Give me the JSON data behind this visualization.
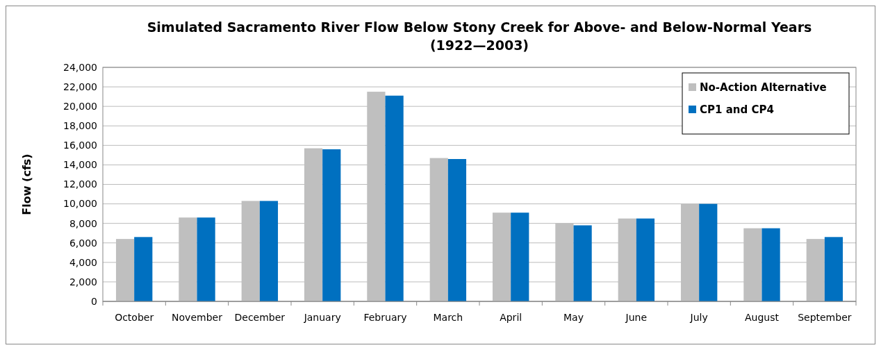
{
  "chart_data": {
    "type": "bar",
    "title": "Simulated Sacramento River Flow Below Stony Creek for Above- and Below-Normal Years",
    "subtitle": "(1922—2003)",
    "ylabel": "Flow (cfs)",
    "categories": [
      "October",
      "November",
      "December",
      "January",
      "February",
      "March",
      "April",
      "May",
      "June",
      "July",
      "August",
      "September"
    ],
    "series": [
      {
        "name": "No-Action Alternative",
        "color": "#bfbfbf",
        "values": [
          6400,
          8600,
          10300,
          15700,
          21500,
          14700,
          9100,
          8000,
          8500,
          10000,
          7500,
          6400
        ]
      },
      {
        "name": "CP1 and CP4",
        "color": "#0070c0",
        "values": [
          6600,
          8600,
          10300,
          15600,
          21100,
          14600,
          9100,
          7800,
          8500,
          10000,
          7500,
          6600
        ]
      }
    ],
    "ylim": [
      0,
      24000
    ],
    "yticks": [
      {
        "value": 0,
        "label": "0"
      },
      {
        "value": 2000,
        "label": "2,000"
      },
      {
        "value": 4000,
        "label": "4,000"
      },
      {
        "value": 6000,
        "label": "6,000"
      },
      {
        "value": 8000,
        "label": "8,000"
      },
      {
        "value": 10000,
        "label": "10,000"
      },
      {
        "value": 12000,
        "label": "12,000"
      },
      {
        "value": 14000,
        "label": "14,000"
      },
      {
        "value": 16000,
        "label": "16,000"
      },
      {
        "value": 18000,
        "label": "18,000"
      },
      {
        "value": 20000,
        "label": "20,000"
      },
      {
        "value": 22000,
        "label": "22,000"
      },
      {
        "value": 24000,
        "label": "24,000"
      }
    ],
    "grid": "y",
    "legend": "top right"
  }
}
